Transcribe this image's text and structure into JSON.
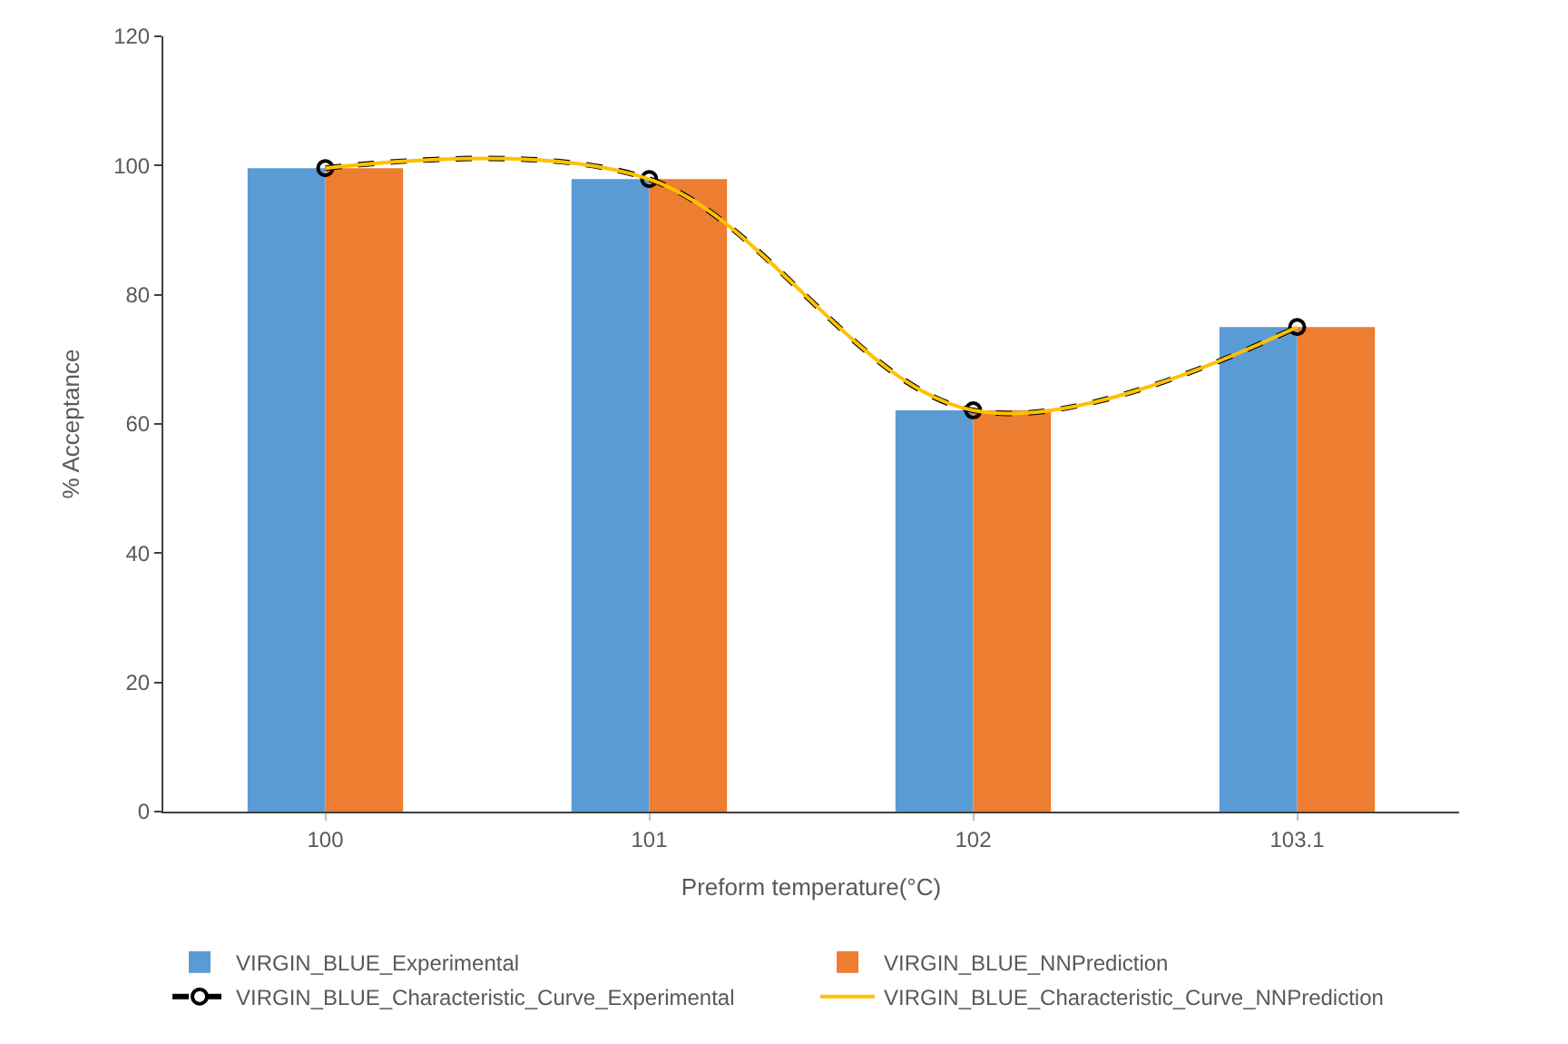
{
  "chart_data": {
    "type": "bar",
    "xlabel": "Preform temperature(°C)",
    "ylabel": "% Acceptance",
    "categories": [
      "100",
      "101",
      "102",
      "103.1"
    ],
    "series": [
      {
        "name": "VIRGIN_BLUE_Experimental",
        "color": "#5b9bd5",
        "values": [
          99.6,
          97.9,
          62.1,
          75.0
        ]
      },
      {
        "name": "VIRGIN_BLUE_NNPrediction",
        "color": "#ed7d31",
        "values": [
          99.6,
          97.9,
          62.1,
          75.0
        ]
      },
      {
        "name": "VIRGIN_BLUE_Characteristic_Curve_Experimental",
        "type": "line",
        "color": "#000000",
        "marker": "circle",
        "line_style": "dashed",
        "values": [
          99.6,
          97.9,
          62.1,
          75.0
        ]
      },
      {
        "name": "VIRGIN_BLUE_Characteristic_Curve_NNPrediction",
        "type": "line",
        "color": "#ffc000",
        "marker": "none",
        "line_style": "solid",
        "values": [
          99.6,
          97.9,
          62.1,
          75.0
        ]
      }
    ],
    "ylim": [
      0,
      120
    ],
    "yticks": [
      0,
      20,
      40,
      60,
      80,
      100,
      120
    ],
    "grid": false,
    "legend": "bottom"
  }
}
